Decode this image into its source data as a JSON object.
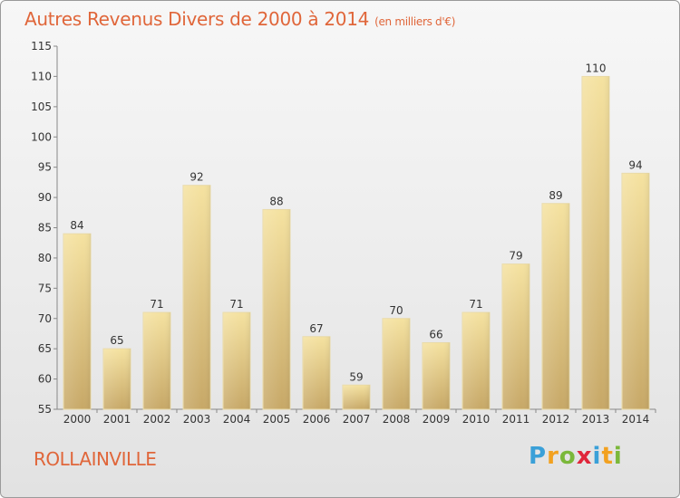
{
  "title": "Autres Revenus Divers de 2000 à 2014",
  "subtitle": "(en milliers d'€)",
  "commune": "ROLLAINVILLE",
  "logo": {
    "letters": [
      "P",
      "r",
      "o",
      "x",
      "i",
      "t",
      "i"
    ],
    "colors": [
      "#3aa0d8",
      "#f2a120",
      "#7bb83a",
      "#e0263a",
      "#3aa0d8",
      "#f2a120",
      "#7bb83a"
    ]
  },
  "colors": {
    "bar_light": "#f5e2a0",
    "bar_dark": "#c7a867",
    "text": "#333333",
    "title": "#e0663a"
  },
  "chart_data": {
    "type": "bar",
    "title": "Autres Revenus Divers de 2000 à 2014",
    "subtitle": "(en milliers d'€)",
    "categories": [
      "2000",
      "2001",
      "2002",
      "2003",
      "2004",
      "2005",
      "2006",
      "2007",
      "2008",
      "2009",
      "2010",
      "2011",
      "2012",
      "2013",
      "2014"
    ],
    "values": [
      84,
      65,
      71,
      92,
      71,
      88,
      67,
      59,
      70,
      66,
      71,
      79,
      89,
      110,
      94
    ],
    "ylim": [
      55,
      115
    ],
    "yticks": [
      55,
      60,
      65,
      70,
      75,
      80,
      85,
      90,
      95,
      100,
      105,
      110,
      115
    ],
    "grid": false,
    "legend": "none"
  }
}
